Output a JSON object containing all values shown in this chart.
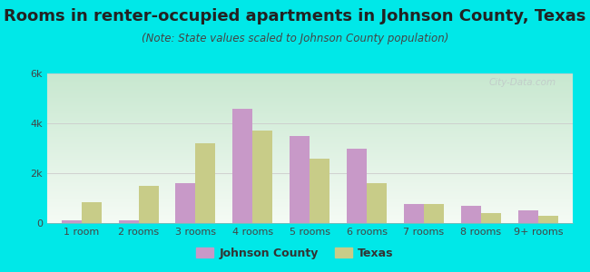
{
  "title": "Rooms in renter-occupied apartments in Johnson County, Texas",
  "subtitle": "(Note: State values scaled to Johnson County population)",
  "categories": [
    "1 room",
    "2 rooms",
    "3 rooms",
    "4 rooms",
    "5 rooms",
    "6 rooms",
    "7 rooms",
    "8 rooms",
    "9+ rooms"
  ],
  "johnson_county": [
    100,
    110,
    1600,
    4600,
    3500,
    3000,
    750,
    700,
    500
  ],
  "texas": [
    820,
    1500,
    3200,
    3700,
    2600,
    1600,
    760,
    400,
    300
  ],
  "johnson_color": "#c899c8",
  "texas_color": "#c8cc88",
  "background_color": "#00e8e8",
  "ylim": [
    0,
    6000
  ],
  "yticks": [
    0,
    2000,
    4000,
    6000
  ],
  "ytick_labels": [
    "0",
    "2k",
    "4k",
    "6k"
  ],
  "bar_width": 0.35,
  "legend_labels": [
    "Johnson County",
    "Texas"
  ],
  "watermark": "City-Data.com",
  "title_fontsize": 13,
  "subtitle_fontsize": 8.5,
  "axis_fontsize": 8,
  "legend_fontsize": 9
}
